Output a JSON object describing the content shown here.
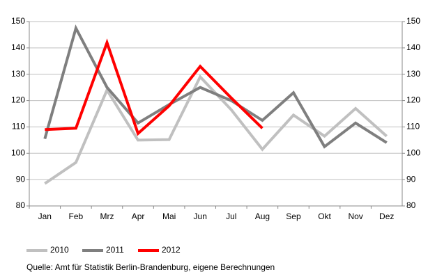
{
  "chart_data": {
    "type": "line",
    "categories": [
      "Jan",
      "Feb",
      "Mrz",
      "Apr",
      "Mai",
      "Jun",
      "Jul",
      "Aug",
      "Sep",
      "Okt",
      "Nov",
      "Dez"
    ],
    "series": [
      {
        "name": "2010",
        "color": "#c0c0c0",
        "values": [
          88.5,
          96.5,
          124,
          105,
          105.2,
          129,
          116.5,
          101.5,
          114.5,
          106.5,
          117,
          106.5
        ]
      },
      {
        "name": "2011",
        "color": "#7f7f7f",
        "values": [
          105.5,
          147.5,
          125,
          111.5,
          118.5,
          125,
          120,
          112.5,
          123,
          102.5,
          111.5,
          104
        ]
      },
      {
        "name": "2012",
        "color": "#ff0000",
        "values": [
          109,
          109.5,
          142,
          107.5,
          118,
          133,
          121,
          109.5,
          null,
          null,
          null,
          null
        ]
      }
    ],
    "ylim": [
      80,
      150
    ],
    "yticks": [
      80,
      90,
      100,
      110,
      120,
      130,
      140,
      150
    ],
    "y2lim": [
      80,
      150
    ],
    "y2ticks": [
      80,
      90,
      100,
      110,
      120,
      130,
      140,
      150
    ],
    "grid": true,
    "legend": "bottom",
    "source": "Quelle: Amt für Statistik Berlin-Brandenburg, eigene Berechnungen"
  }
}
